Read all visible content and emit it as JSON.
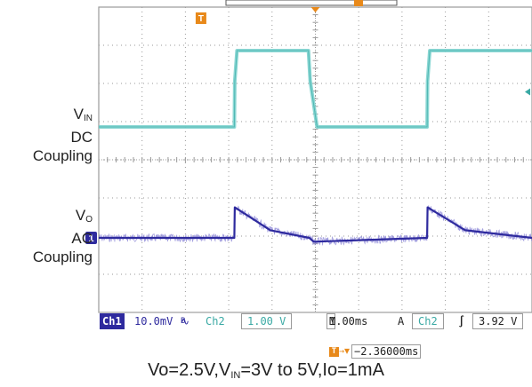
{
  "labels": {
    "vin": {
      "main": "V",
      "sub": "IN",
      "line2": "DC",
      "line3": "Coupling"
    },
    "vo": {
      "main": "V",
      "sub": "O",
      "line2": "AC",
      "line3": "Coupling"
    }
  },
  "markers": {
    "ch1": "1",
    "trigger": "T"
  },
  "status": {
    "ch1_name": "Ch1",
    "ch1_scale": "10.0mV",
    "ch1_bw_symbol": "∿",
    "ch1_bw_sub": "Β",
    "ch2_name": "Ch2",
    "ch2_scale": "1.00 V",
    "time_prefix": "M",
    "time_scale": "1.00ms",
    "trigger_mode": "A",
    "trigger_source": "Ch2",
    "trigger_slope": "∫",
    "trigger_level": "3.92 V"
  },
  "delay": {
    "symbol": "T",
    "arrow": "→▼",
    "value": "−2.36000ms"
  },
  "caption": {
    "p1": "Vo=2.5V,V",
    "sub": "IN",
    "p2": "=3V to 5V,Io=1mA"
  },
  "colors": {
    "ch1": "#2e2a9e",
    "ch2": "#7fd3cf",
    "trigger": "#e8891a",
    "grid": "#9a9a9a"
  },
  "chart_data": {
    "type": "line",
    "x_unit": "ms",
    "x_divisions": 10,
    "x_per_div": 1.0,
    "xlim": [
      -2.36,
      7.64
    ],
    "series": [
      {
        "name": "Ch2",
        "volts_per_div": 1.0,
        "x": [
          -2.36,
          0.77,
          0.78,
          0.83,
          2.48,
          2.52,
          2.68,
          5.22,
          5.23,
          5.28,
          7.64
        ],
        "y": [
          3.0,
          3.0,
          4.2,
          5.0,
          5.0,
          4.2,
          3.0,
          3.0,
          4.2,
          5.0,
          5.0
        ]
      },
      {
        "name": "Ch1",
        "volts_per_div": 0.01,
        "x": [
          -2.36,
          0.77,
          0.78,
          1.6,
          2.5,
          2.6,
          5.22,
          5.23,
          6.1,
          7.64
        ],
        "y": [
          0.0,
          0.0,
          0.008,
          0.002,
          0.0,
          -0.001,
          0.0,
          0.008,
          0.002,
          0.0
        ]
      }
    ]
  }
}
